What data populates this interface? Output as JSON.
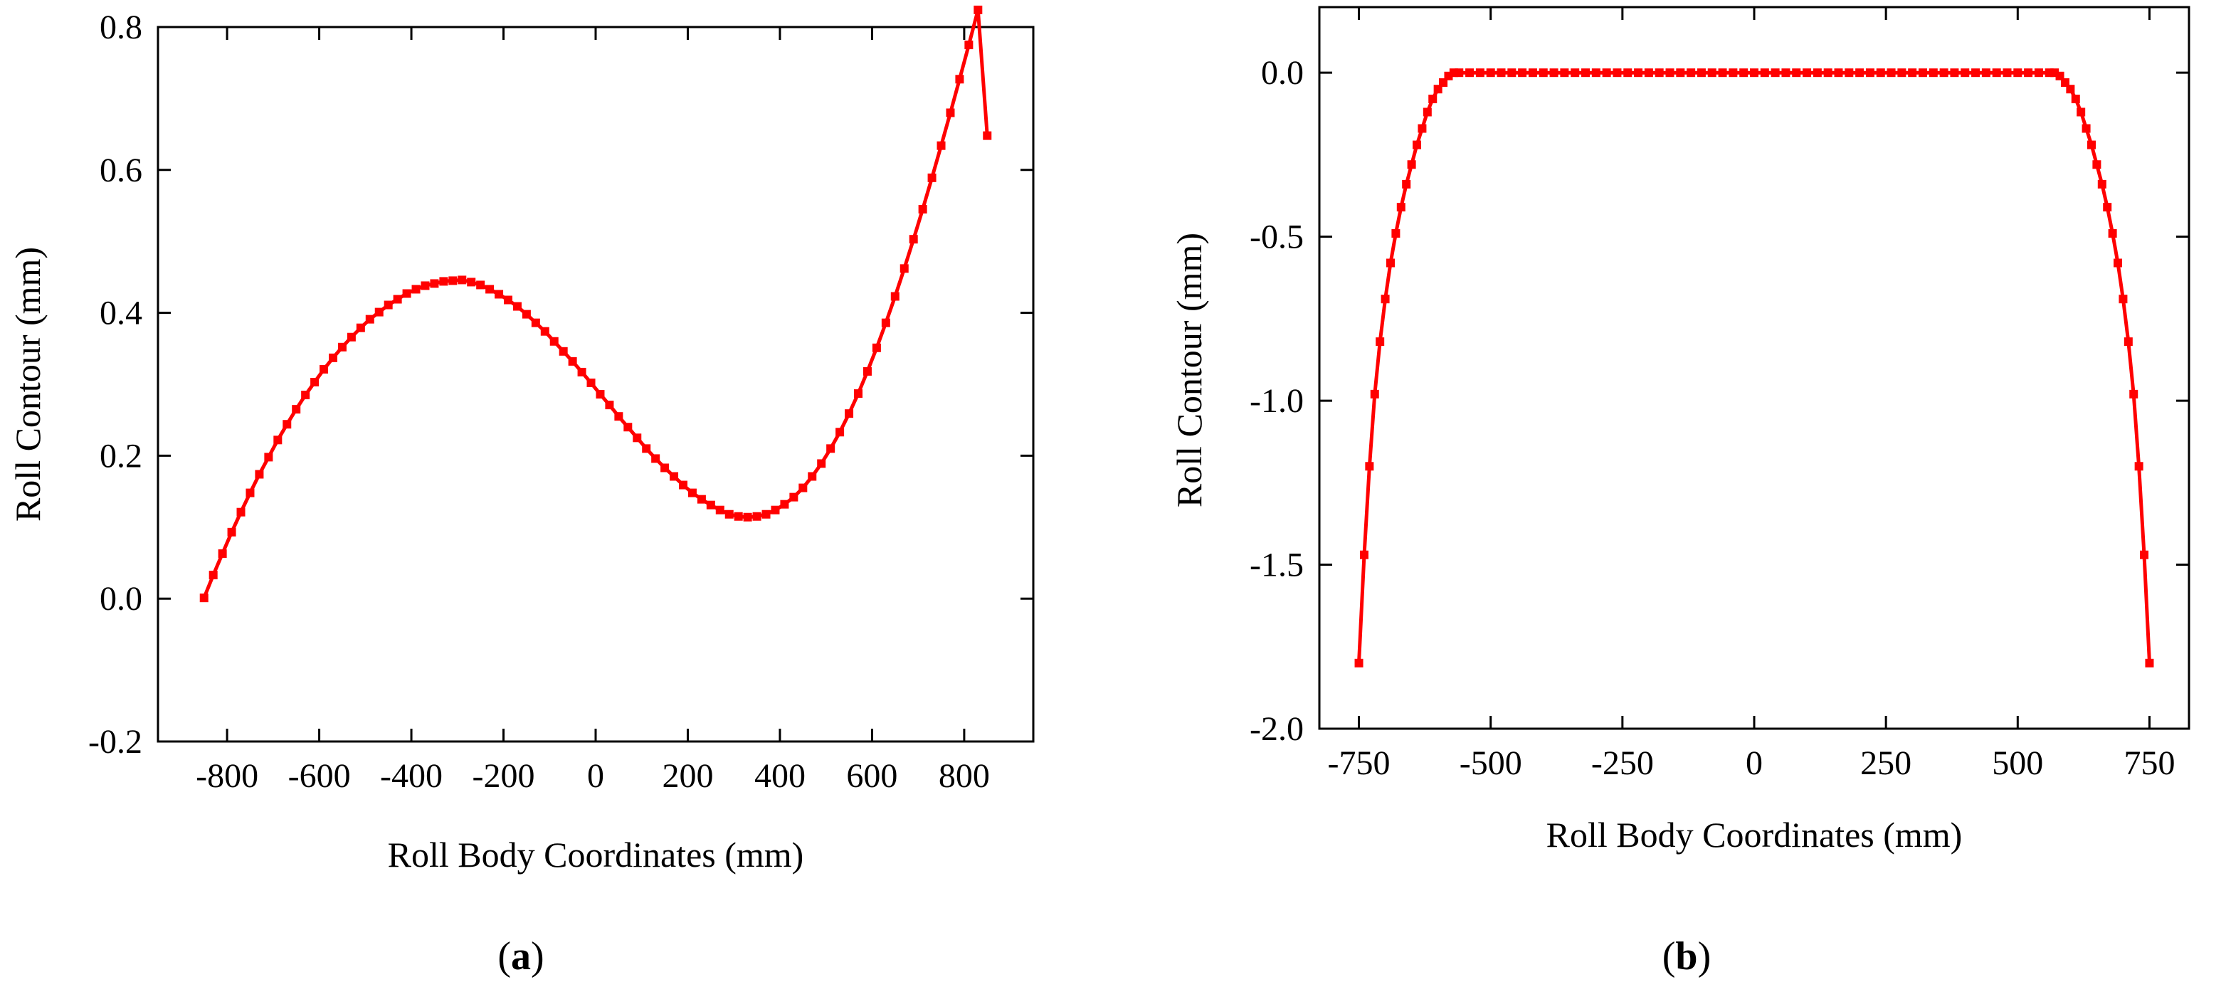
{
  "chart_data": [
    {
      "type": "line",
      "panel_label_open": "(",
      "panel_label_letter": "a",
      "panel_label_close": ")",
      "xlabel": "Roll Body Coordinates (mm)",
      "ylabel": "Roll Contour (mm)",
      "xlim": [
        -950,
        950
      ],
      "ylim": [
        -0.2,
        0.8
      ],
      "x_ticks": [
        -800,
        -600,
        -400,
        -200,
        0,
        200,
        400,
        600,
        800
      ],
      "x_tick_labels": [
        "-800",
        "-600",
        "-400",
        "-200",
        "0",
        "200",
        "400",
        "600",
        "800"
      ],
      "y_ticks": [
        -0.2,
        0.0,
        0.2,
        0.4,
        0.6,
        0.8
      ],
      "y_tick_labels": [
        "-0.2",
        "0.0",
        "0.2",
        "0.4",
        "0.6",
        "0.8"
      ],
      "series": [
        {
          "name": "roll-contour",
          "color": "#ff0000",
          "x": [
            -850,
            -830,
            -810,
            -790,
            -770,
            -750,
            -730,
            -710,
            -690,
            -670,
            -650,
            -630,
            -610,
            -590,
            -570,
            -550,
            -530,
            -510,
            -490,
            -470,
            -450,
            -430,
            -410,
            -390,
            -370,
            -350,
            -330,
            -310,
            -290,
            -270,
            -250,
            -230,
            -210,
            -190,
            -170,
            -150,
            -130,
            -110,
            -90,
            -70,
            -50,
            -30,
            -10,
            10,
            30,
            50,
            70,
            90,
            110,
            130,
            150,
            170,
            190,
            210,
            230,
            250,
            270,
            290,
            310,
            330,
            350,
            370,
            390,
            410,
            430,
            450,
            470,
            490,
            510,
            530,
            550,
            570,
            590,
            610,
            630,
            650,
            670,
            690,
            710,
            730,
            750,
            770,
            790,
            810,
            830,
            850
          ],
          "y": [
            0.001,
            0.033,
            0.063,
            0.093,
            0.121,
            0.148,
            0.174,
            0.198,
            0.222,
            0.244,
            0.265,
            0.285,
            0.303,
            0.321,
            0.337,
            0.352,
            0.366,
            0.379,
            0.391,
            0.401,
            0.411,
            0.419,
            0.427,
            0.433,
            0.438,
            0.441,
            0.444,
            0.445,
            0.446,
            0.443,
            0.439,
            0.433,
            0.426,
            0.418,
            0.409,
            0.398,
            0.386,
            0.374,
            0.36,
            0.346,
            0.332,
            0.317,
            0.302,
            0.286,
            0.271,
            0.255,
            0.24,
            0.225,
            0.21,
            0.196,
            0.183,
            0.171,
            0.159,
            0.148,
            0.139,
            0.131,
            0.124,
            0.118,
            0.115,
            0.114,
            0.115,
            0.118,
            0.124,
            0.132,
            0.142,
            0.155,
            0.171,
            0.189,
            0.21,
            0.233,
            0.259,
            0.287,
            0.318,
            0.351,
            0.386,
            0.423,
            0.462,
            0.503,
            0.545,
            0.589,
            0.634,
            0.68,
            0.727,
            0.775,
            0.824,
            0.648
          ]
        }
      ]
    },
    {
      "type": "line",
      "panel_label_open": "(",
      "panel_label_letter": "b",
      "panel_label_close": ")",
      "xlabel": "Roll Body Coordinates (mm)",
      "ylabel": "Roll Contour (mm)",
      "xlim": [
        -825,
        825
      ],
      "ylim": [
        -2.0,
        0.2
      ],
      "x_ticks": [
        -750,
        -500,
        -250,
        0,
        250,
        500,
        750
      ],
      "x_tick_labels": [
        "-750",
        "-500",
        "-250",
        "0",
        "250",
        "500",
        "750"
      ],
      "y_ticks": [
        -2.0,
        -1.5,
        -1.0,
        -0.5,
        0.0
      ],
      "y_tick_labels": [
        "-2.0",
        "-1.5",
        "-1.0",
        "-0.5",
        "0.0"
      ],
      "series": [
        {
          "name": "roll-contour",
          "color": "#ff0000",
          "x": [
            -750,
            -740,
            -730,
            -720,
            -710,
            -700,
            -690,
            -680,
            -670,
            -660,
            -650,
            -640,
            -630,
            -620,
            -610,
            -600,
            -590,
            -580,
            -570,
            -560,
            -540,
            -520,
            -500,
            -480,
            -460,
            -440,
            -420,
            -400,
            -380,
            -360,
            -340,
            -320,
            -300,
            -280,
            -260,
            -240,
            -220,
            -200,
            -180,
            -160,
            -140,
            -120,
            -100,
            -80,
            -60,
            -40,
            -20,
            0,
            20,
            40,
            60,
            80,
            100,
            120,
            140,
            160,
            180,
            200,
            220,
            240,
            260,
            280,
            300,
            320,
            340,
            360,
            380,
            400,
            420,
            440,
            460,
            480,
            500,
            520,
            540,
            560,
            570,
            580,
            590,
            600,
            610,
            620,
            630,
            640,
            650,
            660,
            670,
            680,
            690,
            700,
            710,
            720,
            730,
            740,
            750
          ],
          "y": [
            -1.8,
            -1.47,
            -1.2,
            -0.98,
            -0.82,
            -0.69,
            -0.58,
            -0.49,
            -0.41,
            -0.34,
            -0.28,
            -0.22,
            -0.17,
            -0.12,
            -0.08,
            -0.05,
            -0.03,
            -0.01,
            0.0,
            0.0,
            0.0,
            0.0,
            0.0,
            0.0,
            0.0,
            0.0,
            0.0,
            0.0,
            0.0,
            0.0,
            0.0,
            0.0,
            0.0,
            0.0,
            0.0,
            0.0,
            0.0,
            0.0,
            0.0,
            0.0,
            0.0,
            0.0,
            0.0,
            0.0,
            0.0,
            0.0,
            0.0,
            0.0,
            0.0,
            0.0,
            0.0,
            0.0,
            0.0,
            0.0,
            0.0,
            0.0,
            0.0,
            0.0,
            0.0,
            0.0,
            0.0,
            0.0,
            0.0,
            0.0,
            0.0,
            0.0,
            0.0,
            0.0,
            0.0,
            0.0,
            0.0,
            0.0,
            0.0,
            0.0,
            0.0,
            0.0,
            0.0,
            -0.01,
            -0.03,
            -0.05,
            -0.08,
            -0.12,
            -0.17,
            -0.22,
            -0.28,
            -0.34,
            -0.41,
            -0.49,
            -0.58,
            -0.69,
            -0.82,
            -0.98,
            -1.2,
            -1.47,
            -1.8
          ]
        }
      ]
    }
  ]
}
